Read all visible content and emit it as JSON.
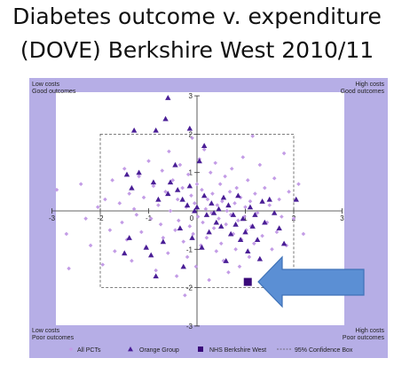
{
  "title": {
    "line1": "Diabetes outcome v. expenditure",
    "line2": "(DOVE) Berkshire West 2010/11"
  },
  "colors": {
    "frame": "#b6aee6",
    "all_pcts": "#c39ce6",
    "orange_group": "#4a1e96",
    "berkshire_west": "#3a0a7a",
    "arrow": "#5b8fd4",
    "box": "#555555"
  },
  "chart_data": {
    "type": "scatter",
    "xlim": [
      -3,
      3
    ],
    "ylim": [
      -3,
      3
    ],
    "x_ticks": [
      "-3",
      "-2",
      "-1",
      "0",
      "1",
      "2",
      "3"
    ],
    "y_ticks": [
      "3",
      "2",
      "1",
      "-1",
      "-2",
      "-3"
    ],
    "corner_labels": {
      "top_left": [
        "Low costs",
        "Good outcomes"
      ],
      "top_right": [
        "High costs",
        "Good outcomes"
      ],
      "bottom_left": [
        "Low costs",
        "Poor outcomes"
      ],
      "bottom_right": [
        "High costs",
        "Poor outcomes"
      ]
    },
    "confidence_box": {
      "x": [
        -2,
        2
      ],
      "y": [
        -2,
        2
      ]
    },
    "legend": [
      "All PCTs",
      "Orange Group",
      "NHS Berkshire West",
      "95% Confidence Box"
    ],
    "series": [
      {
        "name": "All PCTs",
        "marker": "diamond",
        "points": [
          [
            -2.9,
            0.55
          ],
          [
            -2.7,
            -0.6
          ],
          [
            -2.65,
            -1.5
          ],
          [
            -2.4,
            0.7
          ],
          [
            -2.3,
            -0.2
          ],
          [
            -2.2,
            -0.9
          ],
          [
            -2.05,
            0.1
          ],
          [
            -1.95,
            -1.4
          ],
          [
            -1.9,
            0.3
          ],
          [
            -1.8,
            -0.5
          ],
          [
            -1.75,
            0.8
          ],
          [
            -1.7,
            -1.05
          ],
          [
            -1.6,
            0.2
          ],
          [
            -1.55,
            -0.3
          ],
          [
            -1.5,
            1.1
          ],
          [
            -1.45,
            -0.75
          ],
          [
            -1.4,
            0.45
          ],
          [
            -1.35,
            -1.3
          ],
          [
            -1.3,
            0.05
          ],
          [
            -1.25,
            -0.1
          ],
          [
            -1.2,
            0.9
          ],
          [
            -1.15,
            -0.55
          ],
          [
            -1.1,
            0.35
          ],
          [
            -1.05,
            -0.95
          ],
          [
            -1.0,
            1.3
          ],
          [
            -0.95,
            -0.2
          ],
          [
            -0.9,
            0.65
          ],
          [
            -0.85,
            -1.55
          ],
          [
            -0.8,
            0.15
          ],
          [
            -0.75,
            -0.35
          ],
          [
            -0.72,
            1.05
          ],
          [
            -0.7,
            -0.7
          ],
          [
            -0.65,
            0.5
          ],
          [
            -0.6,
            -1.1
          ],
          [
            -0.58,
            1.55
          ],
          [
            -0.55,
            0.0
          ],
          [
            -0.5,
            0.8
          ],
          [
            -0.45,
            -0.5
          ],
          [
            -0.42,
            -1.7
          ],
          [
            -0.4,
            0.3
          ],
          [
            -0.38,
            -0.25
          ],
          [
            -0.35,
            1.2
          ],
          [
            -0.3,
            0.6
          ],
          [
            -0.28,
            -0.8
          ],
          [
            -0.25,
            -2.2
          ],
          [
            -0.22,
            0.1
          ],
          [
            -0.2,
            -1.2
          ],
          [
            -0.18,
            0.95
          ],
          [
            -0.15,
            -0.4
          ],
          [
            -0.12,
            0.4
          ],
          [
            -0.1,
            1.9
          ],
          [
            -0.08,
            -0.6
          ],
          [
            -0.05,
            0.2
          ],
          [
            -0.02,
            -1.45
          ],
          [
            0.0,
            0.7
          ],
          [
            0.02,
            -0.15
          ],
          [
            0.05,
            1.35
          ],
          [
            0.08,
            -0.9
          ],
          [
            0.1,
            0.55
          ],
          [
            0.12,
            -0.3
          ],
          [
            0.15,
            1.6
          ],
          [
            0.18,
            0.05
          ],
          [
            0.2,
            -0.7
          ],
          [
            0.22,
            0.3
          ],
          [
            0.25,
            -1.8
          ],
          [
            0.28,
            1.0
          ],
          [
            0.3,
            -0.05
          ],
          [
            0.32,
            0.45
          ],
          [
            0.35,
            -0.45
          ],
          [
            0.38,
            1.25
          ],
          [
            0.4,
            -1.05
          ],
          [
            0.42,
            0.15
          ],
          [
            0.45,
            -0.2
          ],
          [
            0.48,
            0.7
          ],
          [
            0.5,
            -0.85
          ],
          [
            0.52,
            0.25
          ],
          [
            0.55,
            -1.3
          ],
          [
            0.58,
            0.9
          ],
          [
            0.6,
            -0.35
          ],
          [
            0.62,
            0.0
          ],
          [
            0.65,
            -1.6
          ],
          [
            0.68,
            0.5
          ],
          [
            0.7,
            -0.1
          ],
          [
            0.72,
            1.1
          ],
          [
            0.75,
            -0.6
          ],
          [
            0.78,
            0.2
          ],
          [
            0.8,
            -1.0
          ],
          [
            0.82,
            0.6
          ],
          [
            0.85,
            -0.25
          ],
          [
            0.88,
            -1.45
          ],
          [
            0.9,
            0.35
          ],
          [
            0.92,
            -0.75
          ],
          [
            0.95,
            1.4
          ],
          [
            0.98,
            -0.15
          ],
          [
            1.0,
            0.1
          ],
          [
            1.02,
            -0.5
          ],
          [
            1.05,
            0.8
          ],
          [
            1.08,
            -1.2
          ],
          [
            1.1,
            0.25
          ],
          [
            1.12,
            -0.4
          ],
          [
            1.15,
            1.95
          ],
          [
            1.18,
            -0.85
          ],
          [
            1.2,
            0.45
          ],
          [
            1.25,
            -0.05
          ],
          [
            1.3,
            1.2
          ],
          [
            1.35,
            -0.65
          ],
          [
            1.4,
            0.6
          ],
          [
            1.45,
            -0.3
          ],
          [
            1.5,
            0.15
          ],
          [
            1.55,
            -1.0
          ],
          [
            1.6,
            0.85
          ],
          [
            1.65,
            -0.55
          ],
          [
            1.7,
            0.3
          ],
          [
            1.75,
            -0.15
          ],
          [
            1.8,
            1.5
          ],
          [
            1.85,
            -0.9
          ],
          [
            1.9,
            0.5
          ],
          [
            2.0,
            -0.2
          ],
          [
            2.1,
            0.7
          ],
          [
            2.2,
            -0.6
          ],
          [
            2.3,
            -1.9
          ]
        ]
      },
      {
        "name": "Orange Group",
        "marker": "triangle",
        "points": [
          [
            -1.5,
            -1.1
          ],
          [
            -1.45,
            0.95
          ],
          [
            -1.4,
            -0.7
          ],
          [
            -1.35,
            0.6
          ],
          [
            -1.2,
            1.0
          ],
          [
            -1.05,
            -0.95
          ],
          [
            -0.95,
            -1.15
          ],
          [
            -0.9,
            0.75
          ],
          [
            -0.85,
            -1.7
          ],
          [
            -0.8,
            0.3
          ],
          [
            -0.7,
            -0.8
          ],
          [
            -0.6,
            0.45
          ],
          [
            -0.55,
            0.75
          ],
          [
            -0.45,
            1.2
          ],
          [
            -0.4,
            0.55
          ],
          [
            -0.35,
            -0.45
          ],
          [
            -0.3,
            0.3
          ],
          [
            -0.28,
            -1.45
          ],
          [
            -0.2,
            0.15
          ],
          [
            -0.15,
            0.65
          ],
          [
            -0.1,
            -0.7
          ],
          [
            -0.05,
            0.0
          ],
          [
            0.0,
            0.1
          ],
          [
            0.05,
            1.3
          ],
          [
            0.1,
            -0.95
          ],
          [
            0.15,
            0.4
          ],
          [
            0.2,
            -0.1
          ],
          [
            0.25,
            -0.55
          ],
          [
            0.3,
            0.2
          ],
          [
            0.35,
            -0.05
          ],
          [
            0.4,
            -0.3
          ],
          [
            0.45,
            0.05
          ],
          [
            0.5,
            -0.4
          ],
          [
            0.55,
            0.35
          ],
          [
            0.6,
            -1.3
          ],
          [
            0.65,
            0.15
          ],
          [
            0.7,
            -0.6
          ],
          [
            0.75,
            -0.1
          ],
          [
            0.8,
            -0.35
          ],
          [
            0.85,
            0.4
          ],
          [
            0.9,
            -0.75
          ],
          [
            0.95,
            -0.2
          ],
          [
            1.0,
            -0.55
          ],
          [
            1.05,
            -1.05
          ],
          [
            1.1,
            0.1
          ],
          [
            1.15,
            -0.4
          ],
          [
            1.2,
            -0.1
          ],
          [
            1.25,
            -0.75
          ],
          [
            1.3,
            -1.25
          ],
          [
            1.35,
            0.25
          ],
          [
            1.4,
            -0.3
          ],
          [
            1.5,
            0.3
          ],
          [
            1.6,
            -0.05
          ],
          [
            1.7,
            -0.45
          ],
          [
            1.8,
            -0.85
          ],
          [
            2.05,
            0.3
          ],
          [
            -0.65,
            2.4
          ],
          [
            -0.85,
            2.1
          ],
          [
            -1.3,
            2.1
          ],
          [
            -0.6,
            2.95
          ],
          [
            -0.15,
            2.15
          ],
          [
            0.15,
            1.7
          ]
        ]
      },
      {
        "name": "NHS Berkshire West",
        "marker": "square",
        "points": [
          [
            1.05,
            -1.85
          ]
        ]
      }
    ]
  }
}
